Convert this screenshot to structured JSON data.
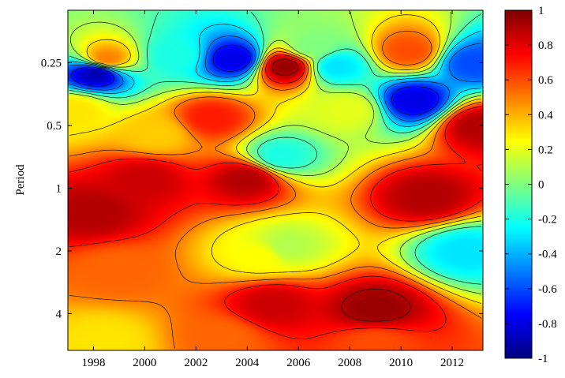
{
  "chart_data": {
    "type": "heatmap",
    "title": "",
    "xlabel": "",
    "ylabel": "Period",
    "x_ticks": [
      "1998",
      "2000",
      "2002",
      "2004",
      "2006",
      "2008",
      "2010",
      "2012"
    ],
    "x_tick_values": [
      1998,
      2000,
      2002,
      2004,
      2006,
      2008,
      2010,
      2012
    ],
    "xlim": [
      1997,
      2013.2
    ],
    "y_ticks": [
      "0.25",
      "0.5",
      "1",
      "2",
      "4"
    ],
    "y_tick_values": [
      0.25,
      0.5,
      1,
      2,
      4
    ],
    "ylim": [
      0.14,
      6.0
    ],
    "y_scale": "log2",
    "y_direction": "increasing-downward",
    "colorbar": {
      "ticks": [
        "1",
        "0.8",
        "0.6",
        "0.4",
        "0.2",
        "0",
        "-0.2",
        "-0.4",
        "-0.6",
        "-0.8",
        "-1"
      ],
      "tick_values": [
        1,
        0.8,
        0.6,
        0.4,
        0.2,
        0,
        -0.2,
        -0.4,
        -0.6,
        -0.8,
        -1
      ],
      "range": [
        -1,
        1
      ],
      "colormap": "jet"
    },
    "contour_lines": true,
    "grid": false,
    "legend": "colorbar-right",
    "features": [
      {
        "x": 2010.5,
        "period": 0.38,
        "value": -0.8
      },
      {
        "x": 1998.1,
        "period": 0.28,
        "value": -0.9
      },
      {
        "x": 2005.3,
        "period": 0.7,
        "value": -0.2
      },
      {
        "x": 2005.5,
        "period": 1.9,
        "value": 0.1
      },
      {
        "x": 2012.5,
        "period": 2.0,
        "value": -0.3
      },
      {
        "x": 2004.5,
        "period": 2.1,
        "value": 0.25
      },
      {
        "x": 2000.5,
        "period": 0.55,
        "value": 0.35
      },
      {
        "x": 2003.5,
        "period": 0.24,
        "value": -0.8
      },
      {
        "x": 1998.5,
        "period": 0.24,
        "value": 0.5
      },
      {
        "x": 2005.5,
        "period": 0.26,
        "value": 0.95
      },
      {
        "x": 2007.5,
        "period": 0.26,
        "value": -0.3
      },
      {
        "x": 2010.3,
        "period": 0.22,
        "value": 0.6
      },
      {
        "x": 2012.8,
        "period": 0.25,
        "value": -0.6
      },
      {
        "x": 2006.5,
        "period": 0.21,
        "value": 0.0
      },
      {
        "x": 2001.2,
        "period": 0.23,
        "value": -0.2
      },
      {
        "x": 1997.3,
        "period": 0.42,
        "value": 0.3
      },
      {
        "x": 2008.0,
        "period": 0.42,
        "value": 0.2
      },
      {
        "x": 2002.6,
        "period": 0.46,
        "value": 0.7
      },
      {
        "x": 2013.0,
        "period": 0.5,
        "value": 0.9
      },
      {
        "x": 2004.0,
        "period": 0.9,
        "value": 0.9
      },
      {
        "x": 2011.0,
        "period": 1.1,
        "value": 0.9
      },
      {
        "x": 2000.0,
        "period": 0.9,
        "value": 0.85
      },
      {
        "x": 1998.0,
        "period": 1.3,
        "value": 0.9
      },
      {
        "x": 2009.0,
        "period": 3.8,
        "value": 0.95
      },
      {
        "x": 2005.0,
        "period": 3.6,
        "value": 0.85
      },
      {
        "x": 1999.0,
        "period": 2.5,
        "value": 0.55
      },
      {
        "x": 1998.5,
        "period": 5.4,
        "value": 0.3
      },
      {
        "x": 2003.0,
        "period": 5.2,
        "value": 0.55
      },
      {
        "x": 2009.0,
        "period": 5.5,
        "value": 0.6
      }
    ]
  }
}
